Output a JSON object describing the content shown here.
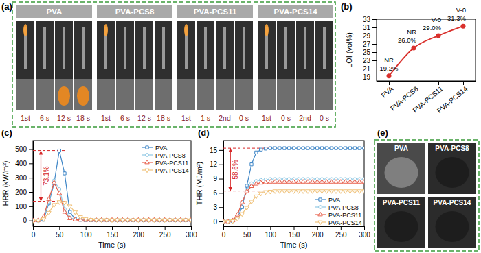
{
  "chart_data": [
    {
      "type": "image_grid",
      "panel": "(a)",
      "groups": [
        {
          "title": "PVA",
          "frames": [
            "1st",
            "6 s",
            "12 s",
            "18 s"
          ]
        },
        {
          "title": "PVA-PCS8",
          "frames": [
            "1st",
            "6 s",
            "12 s",
            "18 s"
          ]
        },
        {
          "title": "PVA-PCS11",
          "frames": [
            "1st",
            "1 s",
            "2nd",
            "0 s"
          ]
        },
        {
          "title": "PVA-PCS14",
          "frames": [
            "1st",
            "0 s",
            "2nd",
            "0 s"
          ]
        }
      ]
    },
    {
      "type": "line",
      "panel": "(b)",
      "y_label": "LOI (vol%)",
      "categories": [
        "PVA",
        "PVA-PCS8",
        "PVA-PCS11",
        "PVA-PCS14"
      ],
      "values": [
        19.2,
        26.0,
        29.0,
        31.3
      ],
      "value_labels": [
        "19.2%",
        "26.0%",
        "29.0%",
        "31.3%"
      ],
      "annotations": [
        "NR",
        "NR",
        "V-0",
        "V-0"
      ],
      "data_labels": true,
      "color": "#d9302c",
      "marker": "circle",
      "line_style": "smooth",
      "ylim": [
        18,
        33
      ],
      "yticks": [
        19,
        21,
        23,
        25,
        27,
        29,
        31,
        33
      ]
    },
    {
      "type": "line",
      "panel": "(c)",
      "x_label": "Time (s)",
      "y_label": "HRR (kW/m²)",
      "x": [
        0,
        10,
        20,
        30,
        40,
        50,
        60,
        70,
        80,
        90,
        100,
        110,
        120,
        130,
        140,
        150,
        160,
        170,
        180,
        190,
        200,
        210,
        220,
        230,
        240,
        250,
        260,
        270,
        280,
        290,
        300
      ],
      "series": [
        {
          "name": "PVA",
          "color": "#3d85c6",
          "marker": "square",
          "values": [
            0,
            0,
            5,
            120,
            260,
            490,
            330,
            60,
            10,
            5,
            2,
            2,
            2,
            2,
            2,
            2,
            2,
            2,
            2,
            2,
            2,
            2,
            2,
            2,
            2,
            2,
            2,
            2,
            2,
            2,
            2
          ]
        },
        {
          "name": "PVA-PCS8",
          "color": "#8fc8e4",
          "marker": "circle",
          "values": [
            0,
            2,
            20,
            130,
            280,
            220,
            80,
            20,
            8,
            5,
            3,
            3,
            3,
            3,
            3,
            3,
            3,
            3,
            3,
            3,
            3,
            3,
            3,
            3,
            3,
            3,
            3,
            3,
            3,
            3,
            3
          ]
        },
        {
          "name": "PVA-PCS11",
          "color": "#e8604c",
          "marker": "triangle-up",
          "values": [
            0,
            2,
            25,
            150,
            265,
            190,
            60,
            15,
            6,
            4,
            3,
            3,
            3,
            3,
            3,
            3,
            3,
            3,
            3,
            3,
            3,
            3,
            3,
            3,
            3,
            3,
            3,
            3,
            3,
            3,
            3
          ]
        },
        {
          "name": "PVA-PCS14",
          "color": "#f0c27a",
          "marker": "triangle-down",
          "values": [
            0,
            0,
            10,
            55,
            110,
            130,
            125,
            100,
            60,
            25,
            12,
            6,
            4,
            4,
            4,
            4,
            4,
            4,
            4,
            4,
            4,
            4,
            4,
            4,
            4,
            4,
            4,
            4,
            4,
            4,
            4
          ]
        }
      ],
      "xlim": [
        0,
        300
      ],
      "xticks": [
        0,
        50,
        100,
        150,
        200,
        250,
        300
      ],
      "ylim": [
        -40,
        560
      ],
      "yticks": [
        0,
        100,
        200,
        300,
        400,
        500
      ],
      "legend": "upper right",
      "annotations": [
        {
          "text": "73.1%",
          "x": 15,
          "x_end": 65,
          "from": 490,
          "to": 135
        }
      ]
    },
    {
      "type": "line",
      "panel": "(d)",
      "x_label": "Time (s)",
      "y_label": "THR (MJ/m²)",
      "x": [
        0,
        10,
        20,
        30,
        40,
        50,
        60,
        70,
        80,
        90,
        100,
        110,
        120,
        130,
        140,
        150,
        160,
        170,
        180,
        190,
        200,
        210,
        220,
        230,
        240,
        250,
        260,
        270,
        280,
        290,
        300
      ],
      "series": [
        {
          "name": "PVA",
          "color": "#3d85c6",
          "marker": "square",
          "values": [
            0,
            0,
            0.1,
            0.8,
            3.0,
            7.5,
            12.0,
            14.5,
            15.1,
            15.3,
            15.4,
            15.4,
            15.4,
            15.4,
            15.4,
            15.4,
            15.4,
            15.4,
            15.4,
            15.4,
            15.4,
            15.4,
            15.4,
            15.4,
            15.4,
            15.4,
            15.4,
            15.4,
            15.4,
            15.4,
            15.4
          ]
        },
        {
          "name": "PVA-PCS8",
          "color": "#8fc8e4",
          "marker": "circle",
          "values": [
            0,
            0,
            0.2,
            1.2,
            3.9,
            6.6,
            8.0,
            8.5,
            8.7,
            8.8,
            8.9,
            8.9,
            8.9,
            8.9,
            8.9,
            8.9,
            8.9,
            8.9,
            8.9,
            8.9,
            8.9,
            8.9,
            8.9,
            8.9,
            8.9,
            8.9,
            8.9,
            8.9,
            8.9,
            8.9,
            8.9
          ]
        },
        {
          "name": "PVA-PCS11",
          "color": "#e8604c",
          "marker": "triangle-up",
          "values": [
            0,
            0,
            0.2,
            1.4,
            4.0,
            6.3,
            7.4,
            7.9,
            8.1,
            8.2,
            8.3,
            8.3,
            8.3,
            8.3,
            8.3,
            8.3,
            8.3,
            8.3,
            8.3,
            8.3,
            8.3,
            8.3,
            8.3,
            8.3,
            8.3,
            8.3,
            8.3,
            8.3,
            8.3,
            8.3,
            8.3
          ]
        },
        {
          "name": "PVA-PCS14",
          "color": "#f0c27a",
          "marker": "triangle-down",
          "values": [
            0,
            0,
            0.1,
            0.6,
            1.6,
            2.9,
            4.2,
            5.3,
            5.9,
            6.2,
            6.3,
            6.4,
            6.4,
            6.4,
            6.4,
            6.4,
            6.4,
            6.4,
            6.4,
            6.4,
            6.4,
            6.4,
            6.4,
            6.4,
            6.4,
            6.4,
            6.4,
            6.4,
            6.4,
            6.4,
            6.4
          ]
        }
      ],
      "xlim": [
        0,
        300
      ],
      "xticks": [
        0,
        50,
        100,
        150,
        200,
        250,
        300
      ],
      "ylim": [
        -1,
        17
      ],
      "yticks": [
        0,
        3,
        6,
        9,
        12,
        15
      ],
      "legend": "lower right",
      "annotations": [
        {
          "text": "58.6%",
          "x": 15,
          "x_end": 100,
          "from": 15.4,
          "to": 6.4
        }
      ]
    },
    {
      "type": "image_grid",
      "panel": "(e)",
      "labels": [
        "PVA",
        "PVA-PCS8",
        "PVA-PCS11",
        "PVA-PCS14"
      ]
    }
  ]
}
